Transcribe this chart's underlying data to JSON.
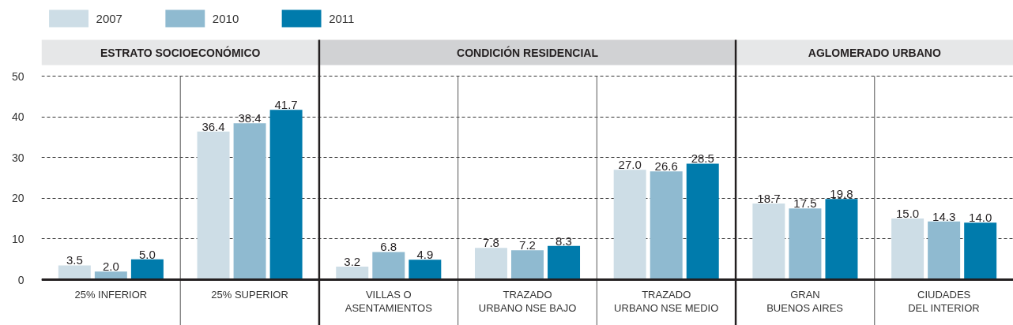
{
  "chart_data": {
    "type": "bar",
    "categories": [
      "25% INFERIOR",
      "25% SUPERIOR",
      "VILLAS O\nASENTAMIENTOS",
      "TRAZADO\nURBANO NSE BAJO",
      "TRAZADO\nURBANO NSE MEDIO",
      "GRAN\nBUENOS AIRES",
      "CIUDADES\nDEL INTERIOR"
    ],
    "series": [
      {
        "name": "2007",
        "color": "#cddde6",
        "values": [
          3.5,
          36.4,
          3.2,
          7.8,
          27.0,
          18.7,
          15.0
        ],
        "value_labels": [
          "3.5",
          "36.4",
          "3.2",
          "7.8",
          "27.0",
          "18.7",
          "15.0"
        ]
      },
      {
        "name": "2010",
        "color": "#8fbad0",
        "values": [
          2.0,
          38.4,
          6.8,
          7.2,
          26.6,
          17.5,
          14.3
        ],
        "value_labels": [
          "2.0",
          "38.4",
          "6.8",
          "7.2",
          "26.6",
          "17.5",
          "14.3"
        ]
      },
      {
        "name": "2011",
        "color": "#007bac",
        "values": [
          5.0,
          41.7,
          4.9,
          8.3,
          28.5,
          19.8,
          14.0
        ],
        "value_labels": [
          "5.0",
          "41.7",
          "4.9",
          "8.3",
          "28.5",
          "19.8",
          "14.0"
        ]
      }
    ],
    "ylim": [
      0,
      50
    ],
    "yticks": [
      0,
      10,
      20,
      30,
      40,
      50
    ],
    "grid": "y",
    "legend": "top left",
    "annotations": [
      "ESTRATO SOCIOECONÓMICO",
      "CONDICIÓN RESIDENCIAL",
      "AGLOMERADO URBANO"
    ]
  }
}
